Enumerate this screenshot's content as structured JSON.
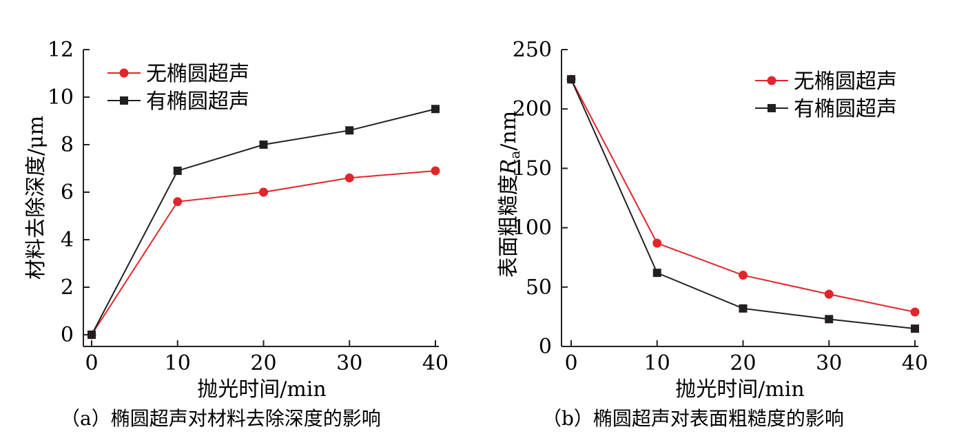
{
  "chart_data": [
    {
      "type": "line",
      "title": "",
      "caption": "（a）椭圆超声对材料去除深度的影响",
      "xlabel": "抛光时间/min",
      "ylabel": "材料去除深度/μm",
      "x": [
        0,
        10,
        20,
        30,
        40
      ],
      "xlim": [
        0,
        40
      ],
      "ylim": [
        0,
        12
      ],
      "xticks": [
        "0",
        "10",
        "20",
        "30",
        "40"
      ],
      "yticks": [
        "0",
        "2",
        "4",
        "6",
        "8",
        "10",
        "12"
      ],
      "legend_position": "top-left",
      "grid": false,
      "series": [
        {
          "name": "无椭圆超声",
          "marker": "circle",
          "color": "#e0262b",
          "values": [
            0,
            5.6,
            6.0,
            6.6,
            6.9
          ]
        },
        {
          "name": "有椭圆超声",
          "marker": "square",
          "color": "#231f20",
          "values": [
            0,
            6.9,
            8.0,
            8.6,
            9.5
          ]
        }
      ]
    },
    {
      "type": "line",
      "title": "",
      "caption": "（b）椭圆超声对表面粗糙度的影响",
      "xlabel": "抛光时间/min",
      "ylabel_main": "表面粗糙度",
      "ylabel_symbol": "R",
      "ylabel_subscript": "a",
      "ylabel_unit": "/nm",
      "x": [
        0,
        10,
        20,
        30,
        40
      ],
      "xlim": [
        0,
        40
      ],
      "ylim": [
        0,
        250
      ],
      "xticks": [
        "0",
        "10",
        "20",
        "30",
        "40"
      ],
      "yticks": [
        "0",
        "50",
        "100",
        "150",
        "200",
        "250"
      ],
      "legend_position": "top-right",
      "grid": false,
      "series": [
        {
          "name": "无椭圆超声",
          "marker": "circle",
          "color": "#e0262b",
          "values": [
            225,
            87,
            60,
            44,
            29
          ]
        },
        {
          "name": "有椭圆超声",
          "marker": "square",
          "color": "#231f20",
          "values": [
            225,
            62,
            32,
            23,
            15
          ]
        }
      ]
    }
  ]
}
